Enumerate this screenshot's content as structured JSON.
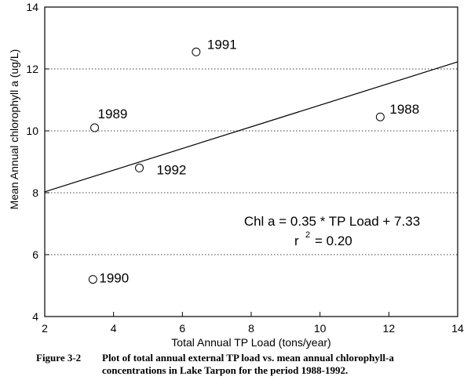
{
  "chart_data": {
    "type": "scatter",
    "title": "",
    "xlabel": "Total Annual TP Load (tons/year)",
    "ylabel": "Mean Annual chlorophyll a (ug/L)",
    "xlim": [
      2,
      14
    ],
    "ylim": [
      4,
      14
    ],
    "xticks": [
      "2",
      "4",
      "6",
      "8",
      "10",
      "12",
      "14"
    ],
    "yticks": [
      "4",
      "6",
      "8",
      "10",
      "12",
      "14"
    ],
    "grid": "horizontal-dotted",
    "points": [
      {
        "label": "1991",
        "x": 6.4,
        "y": 12.55
      },
      {
        "label": "1989",
        "x": 3.45,
        "y": 10.1
      },
      {
        "label": "1988",
        "x": 11.75,
        "y": 10.45
      },
      {
        "label": "1992",
        "x": 4.75,
        "y": 8.8
      },
      {
        "label": "1990",
        "x": 3.4,
        "y": 5.2
      }
    ],
    "regression": {
      "slope": 0.35,
      "intercept": 7.33,
      "x_range": [
        2,
        14
      ]
    },
    "annotation": {
      "equation": "Chl a = 0.35 * TP Load + 7.33",
      "r_prefix": "r",
      "r_sup": "2",
      "r_value": "= 0.20"
    }
  },
  "caption": {
    "label": "Figure 3-2",
    "line1": "Plot of total annual external TP load vs. mean annual chlorophyll-a",
    "line2": "concentrations in Lake Tarpon for the period 1988-1992."
  }
}
